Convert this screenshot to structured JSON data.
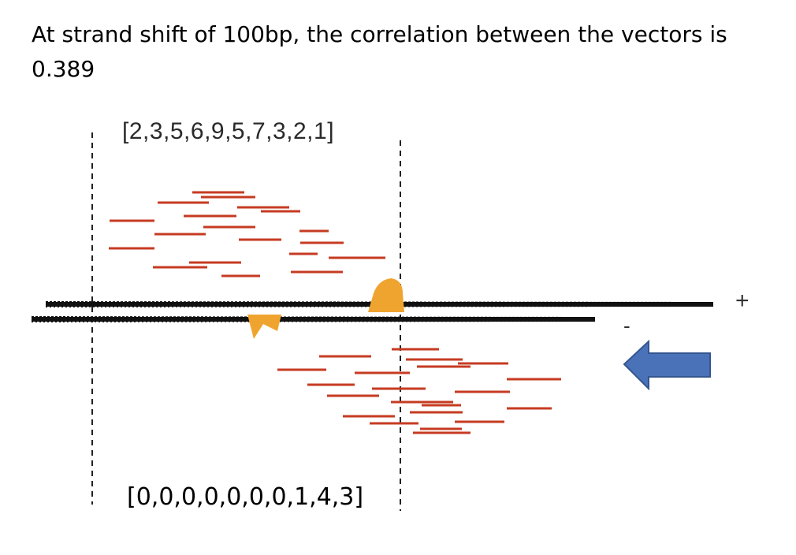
{
  "title": "At strand shift of 100bp, the correlation between the vectors is 0.389",
  "vector_top": "[2,3,5,6,9,5,7,3,2,1]",
  "vector_bottom": "[0,0,0,0,0,0,0,1,4,3]",
  "strand_plus": "+",
  "strand_minus": "-",
  "colors": {
    "read": "#c63b22",
    "strand": "#111111",
    "peak": "#f0a430",
    "arrow": "#4a72b8",
    "arrow_border": "#34568f"
  }
}
